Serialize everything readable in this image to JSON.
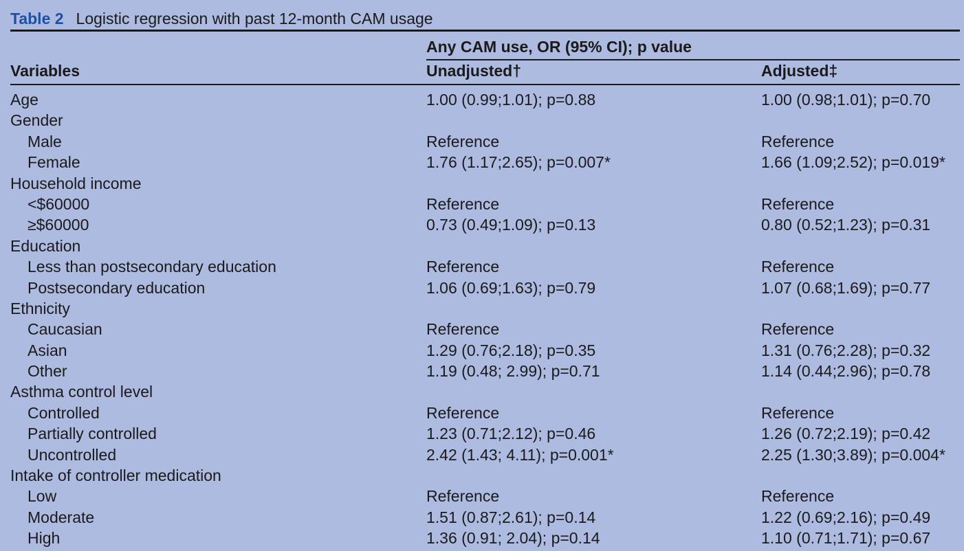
{
  "caption": {
    "label": "Table 2",
    "title": "Logistic regression with past 12-month CAM usage"
  },
  "header": {
    "variables": "Variables",
    "spanning": "Any CAM use, OR (95% CI); p value",
    "unadjusted": "Unadjusted†",
    "adjusted": "Adjusted‡"
  },
  "rows": [
    {
      "variable": "Age",
      "unadjusted": "1.00 (0.99;1.01); p=0.88",
      "adjusted": "1.00 (0.98;1.01); p=0.70"
    },
    {
      "variable": "Gender",
      "unadjusted": "",
      "adjusted": ""
    },
    {
      "variable": "Male",
      "unadjusted": "Reference",
      "adjusted": "Reference"
    },
    {
      "variable": "Female",
      "unadjusted": "1.76 (1.17;2.65); p=0.007*",
      "adjusted": "1.66 (1.09;2.52); p=0.019*"
    },
    {
      "variable": "Household income",
      "unadjusted": "",
      "adjusted": ""
    },
    {
      "variable": "<$60000",
      "unadjusted": "Reference",
      "adjusted": "Reference"
    },
    {
      "variable": "≥$60000",
      "unadjusted": "0.73 (0.49;1.09); p=0.13",
      "adjusted": "0.80 (0.52;1.23); p=0.31"
    },
    {
      "variable": "Education",
      "unadjusted": "",
      "adjusted": ""
    },
    {
      "variable": "Less than postsecondary education",
      "unadjusted": "Reference",
      "adjusted": "Reference"
    },
    {
      "variable": "Postsecondary education",
      "unadjusted": "1.06 (0.69;1.63); p=0.79",
      "adjusted": "1.07 (0.68;1.69); p=0.77"
    },
    {
      "variable": "Ethnicity",
      "unadjusted": "",
      "adjusted": ""
    },
    {
      "variable": "Caucasian",
      "unadjusted": "Reference",
      "adjusted": "Reference"
    },
    {
      "variable": "Asian",
      "unadjusted": "1.29 (0.76;2.18); p=0.35",
      "adjusted": "1.31 (0.76;2.28); p=0.32"
    },
    {
      "variable": "Other",
      "unadjusted": "1.19 (0.48; 2.99); p=0.71",
      "adjusted": "1.14 (0.44;2.96); p=0.78"
    },
    {
      "variable": "Asthma control level",
      "unadjusted": "",
      "adjusted": ""
    },
    {
      "variable": "Controlled",
      "unadjusted": "Reference",
      "adjusted": "Reference"
    },
    {
      "variable": "Partially controlled",
      "unadjusted": "1.23 (0.71;2.12); p=0.46",
      "adjusted": "1.26 (0.72;2.19); p=0.42"
    },
    {
      "variable": "Uncontrolled",
      "unadjusted": "2.42 (1.43; 4.11); p=0.001*",
      "adjusted": "2.25 (1.30;3.89); p=0.004*"
    },
    {
      "variable": "Intake of controller medication",
      "unadjusted": "",
      "adjusted": ""
    },
    {
      "variable": "Low",
      "unadjusted": "Reference",
      "adjusted": "Reference"
    },
    {
      "variable": "Moderate",
      "unadjusted": "1.51 (0.87;2.61); p=0.14",
      "adjusted": "1.22 (0.69;2.16); p=0.49"
    },
    {
      "variable": "High",
      "unadjusted": "1.36 (0.91; 2.04); p=0.14",
      "adjusted": "1.10 (0.71;1.71); p=0.67"
    }
  ]
}
